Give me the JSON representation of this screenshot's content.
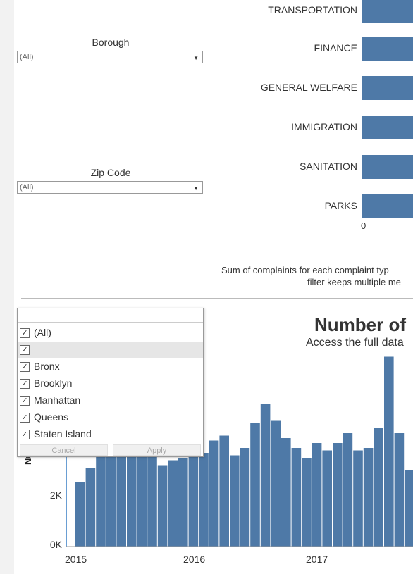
{
  "filters": {
    "borough": {
      "title": "Borough",
      "value": "(All)"
    },
    "zip_code": {
      "title": "Zip Code",
      "value": "(All)"
    }
  },
  "bar_chart": {
    "categories": [
      "TRANSPORTATION",
      "FINANCE",
      "GENERAL WELFARE",
      "IMMIGRATION",
      "SANITATION",
      "PARKS"
    ],
    "axis_zero_label": "0",
    "caption_line1": "Sum of complaints for each complaint typ",
    "caption_line2": "filter keeps multiple me",
    "bar_color": "#4e79a7"
  },
  "listbox": {
    "items": [
      {
        "label": "(All)",
        "checked": true
      },
      {
        "label": "",
        "checked": true,
        "highlighted": true
      },
      {
        "label": "Bronx",
        "checked": true
      },
      {
        "label": "Brooklyn",
        "checked": true
      },
      {
        "label": "Manhattan",
        "checked": true
      },
      {
        "label": "Queens",
        "checked": true
      },
      {
        "label": "Staten Island",
        "checked": true
      }
    ],
    "cancel_label": "Cancel",
    "apply_label": "Apply"
  },
  "chart_data": {
    "type": "bar",
    "title": "Number of",
    "subtitle": "Access the full data",
    "ylabel": "Number o",
    "y_ticks": [
      "0K",
      "2K"
    ],
    "x_ticks": [
      "2015",
      "2016",
      "2017"
    ],
    "ylim": [
      0,
      8000
    ],
    "values": [
      2600,
      3200,
      4100,
      4300,
      3700,
      3700,
      4200,
      4000,
      3300,
      3500,
      3600,
      3800,
      3800,
      4300,
      4500,
      3700,
      4000,
      5000,
      5800,
      5100,
      4400,
      4000,
      3600,
      4200,
      3900,
      4200,
      4600,
      3900,
      4000,
      4800,
      7700,
      4600,
      3100,
      3600
    ],
    "color": "#4e79a7",
    "grid": false
  }
}
